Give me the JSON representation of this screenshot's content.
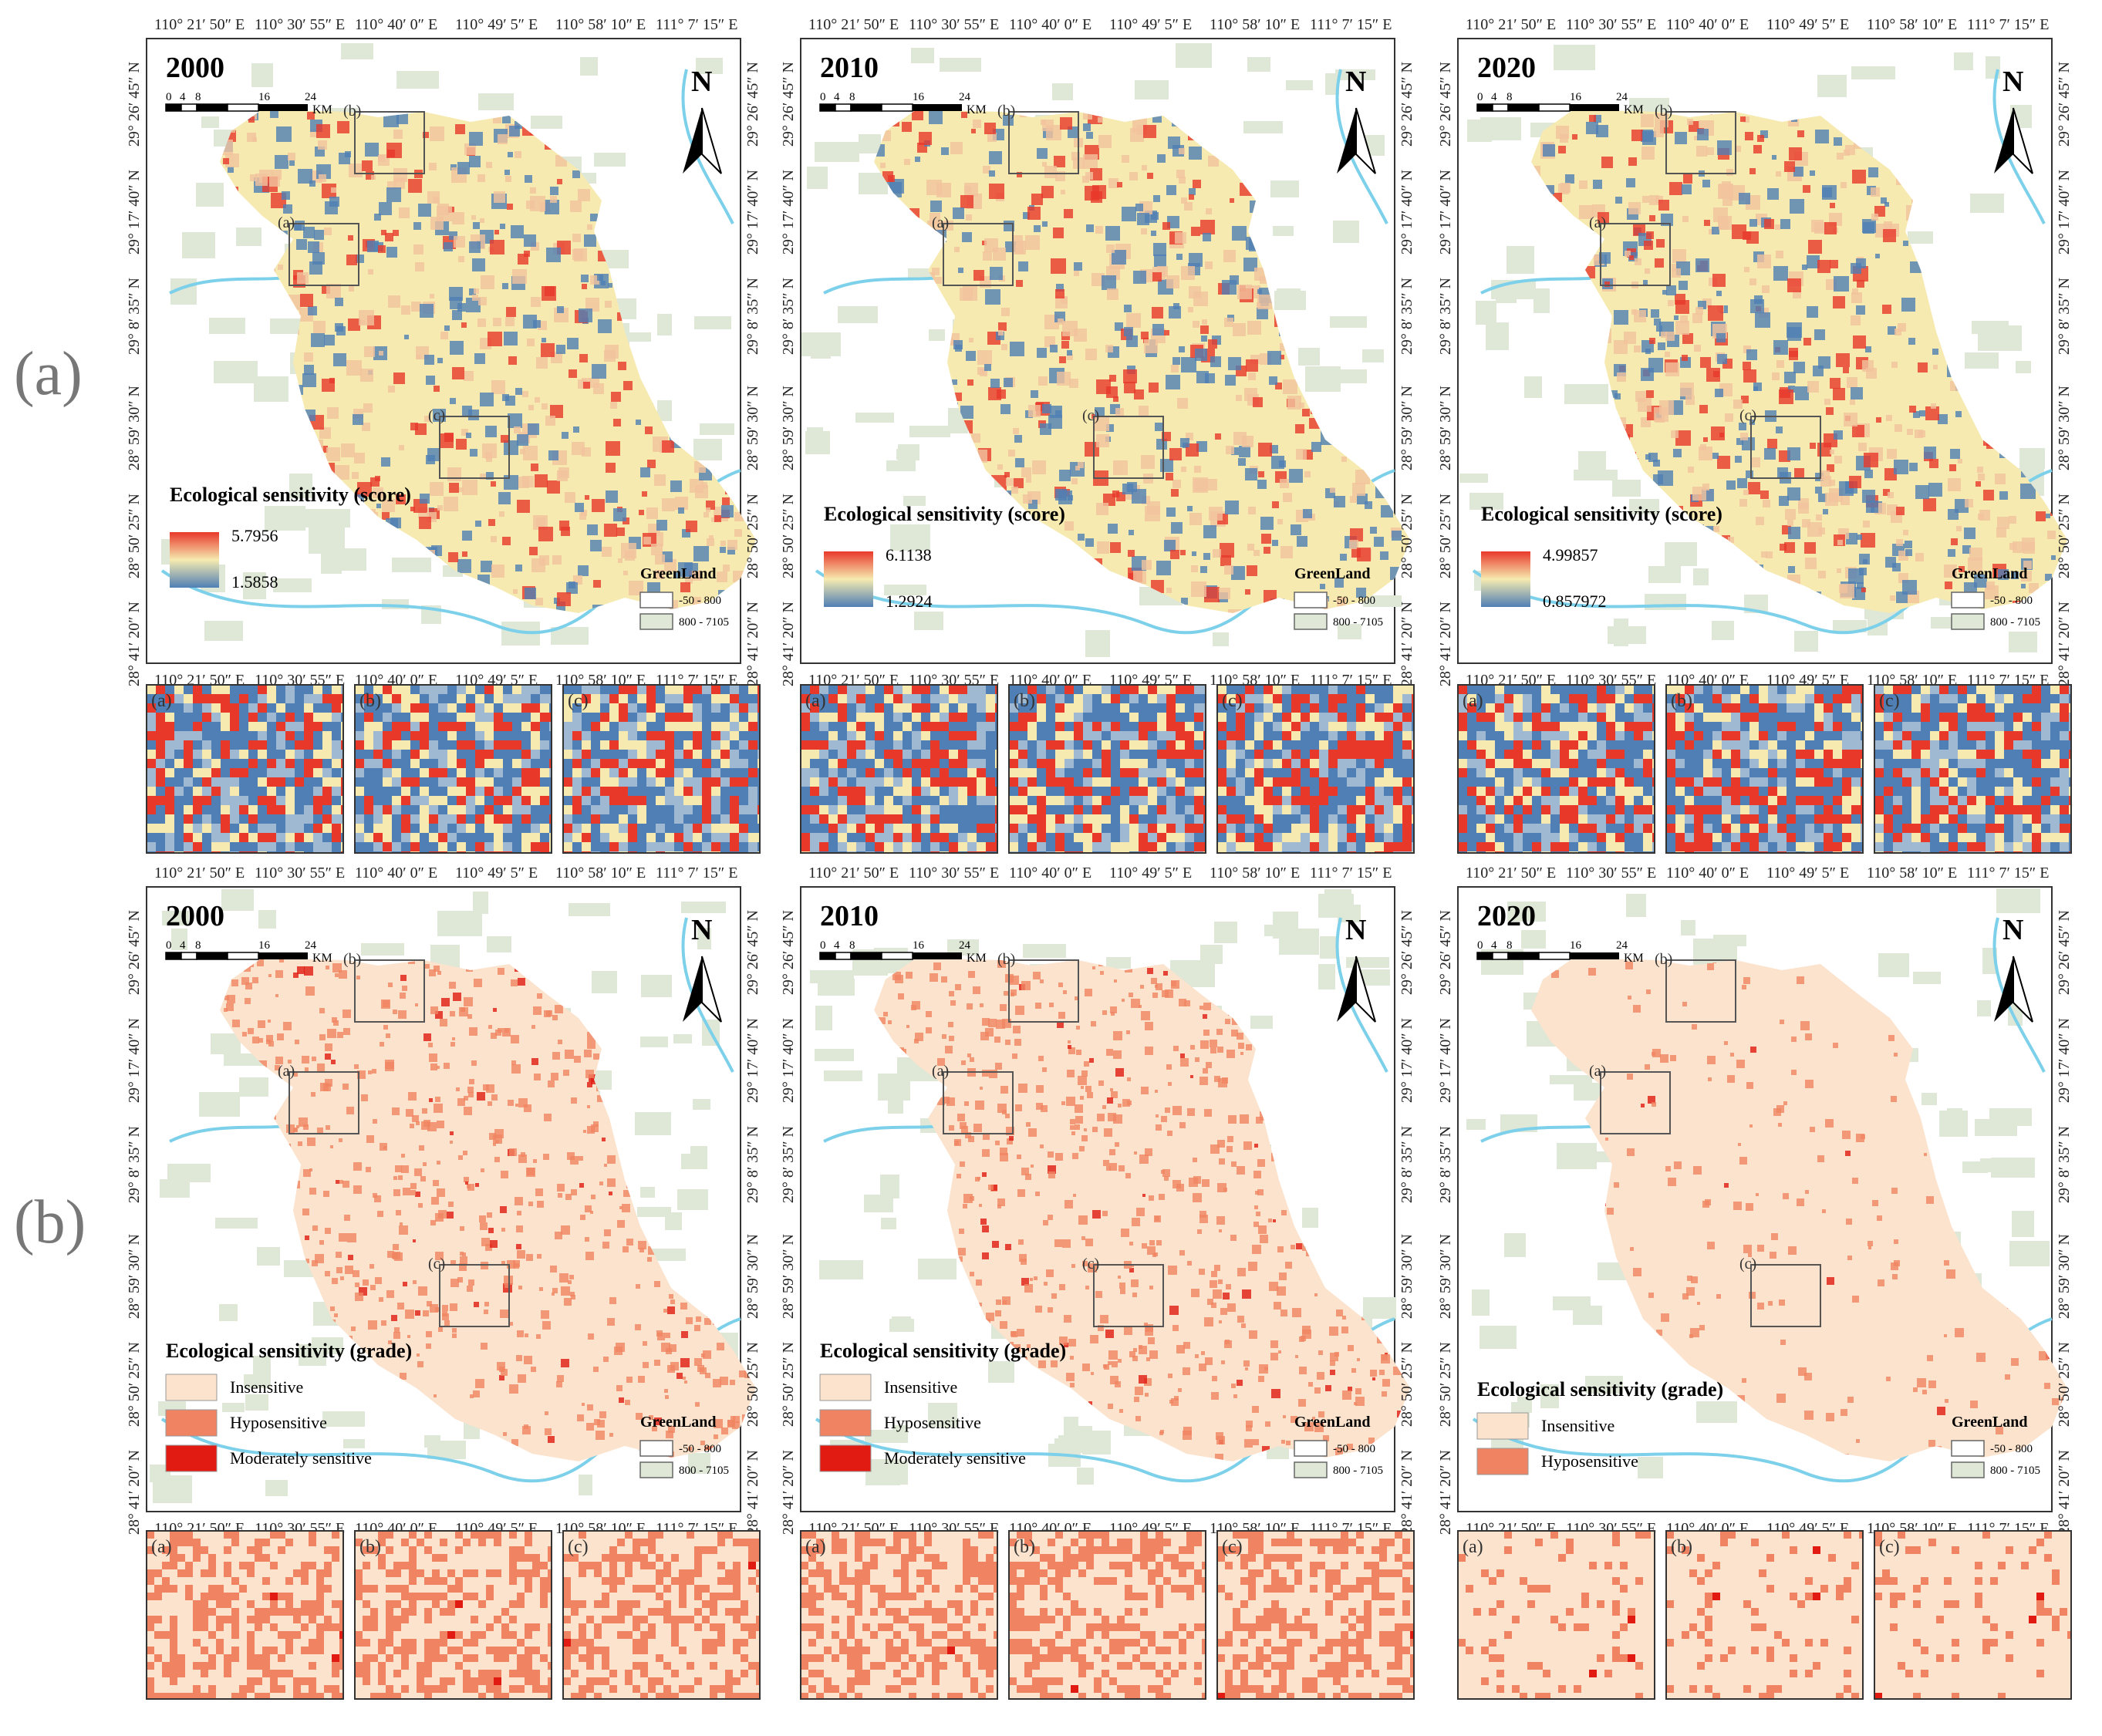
{
  "figure": {
    "row_labels": [
      "(a)",
      "(b)"
    ]
  },
  "axis": {
    "lon_ticks": [
      "110° 21′ 50″ E",
      "110° 30′ 55″ E",
      "110° 40′ 0″ E",
      "110° 49′ 5″ E",
      "110° 58′ 10″ E",
      "111° 7′ 15″ E"
    ],
    "lat_ticks": [
      "29° 26′ 45″ N",
      "29° 17′ 40″ N",
      "29° 8′ 35″ N",
      "28° 59′ 30″ N",
      "28° 50′ 25″ N",
      "28° 41′ 20″ N"
    ]
  },
  "scalebar": {
    "ticks": [
      "0",
      "4",
      "8",
      "16",
      "24"
    ],
    "unit": "KM"
  },
  "north_arrow": {
    "label": "N"
  },
  "greenland_legend": {
    "title": "GreenLand",
    "classes": [
      {
        "label": "-50 - 800",
        "color": "#ffffff"
      },
      {
        "label": "800 - 7105",
        "color": "#dfe7d7"
      }
    ]
  },
  "inset_labels": [
    "(a)",
    "(b)",
    "(c)"
  ],
  "score_maps": [
    {
      "year": "2000",
      "legend_title": "Ecological sensitivity (score)",
      "max": "5.7956",
      "min": "1.5858"
    },
    {
      "year": "2010",
      "legend_title": "Ecological sensitivity (score)",
      "max": "6.1138",
      "min": "1.2924"
    },
    {
      "year": "2020",
      "legend_title": "Ecological sensitivity (score)",
      "max": "4.99857",
      "min": "0.857972"
    }
  ],
  "grade_maps": [
    {
      "year": "2000",
      "legend_title": "Ecological sensitivity (grade)",
      "classes": [
        {
          "label": "Insensitive",
          "color": "#fbe3cd"
        },
        {
          "label": "Hyposensitive",
          "color": "#f08462"
        },
        {
          "label": "Moderately sensitive",
          "color": "#e11a12"
        }
      ]
    },
    {
      "year": "2010",
      "legend_title": "Ecological sensitivity (grade)",
      "classes": [
        {
          "label": "Insensitive",
          "color": "#fbe3cd"
        },
        {
          "label": "Hyposensitive",
          "color": "#f08462"
        },
        {
          "label": "Moderately sensitive",
          "color": "#e11a12"
        }
      ]
    },
    {
      "year": "2020",
      "legend_title": "Ecological sensitivity (grade)",
      "classes": [
        {
          "label": "Insensitive",
          "color": "#fbe3cd"
        },
        {
          "label": "Hyposensitive",
          "color": "#f08462"
        }
      ]
    }
  ],
  "colors": {
    "ramp_high": "#e8382a",
    "ramp_mid": "#f6eab0",
    "ramp_low": "#4f7fb4",
    "water": "#7cd0ea",
    "frame": "#333333"
  }
}
